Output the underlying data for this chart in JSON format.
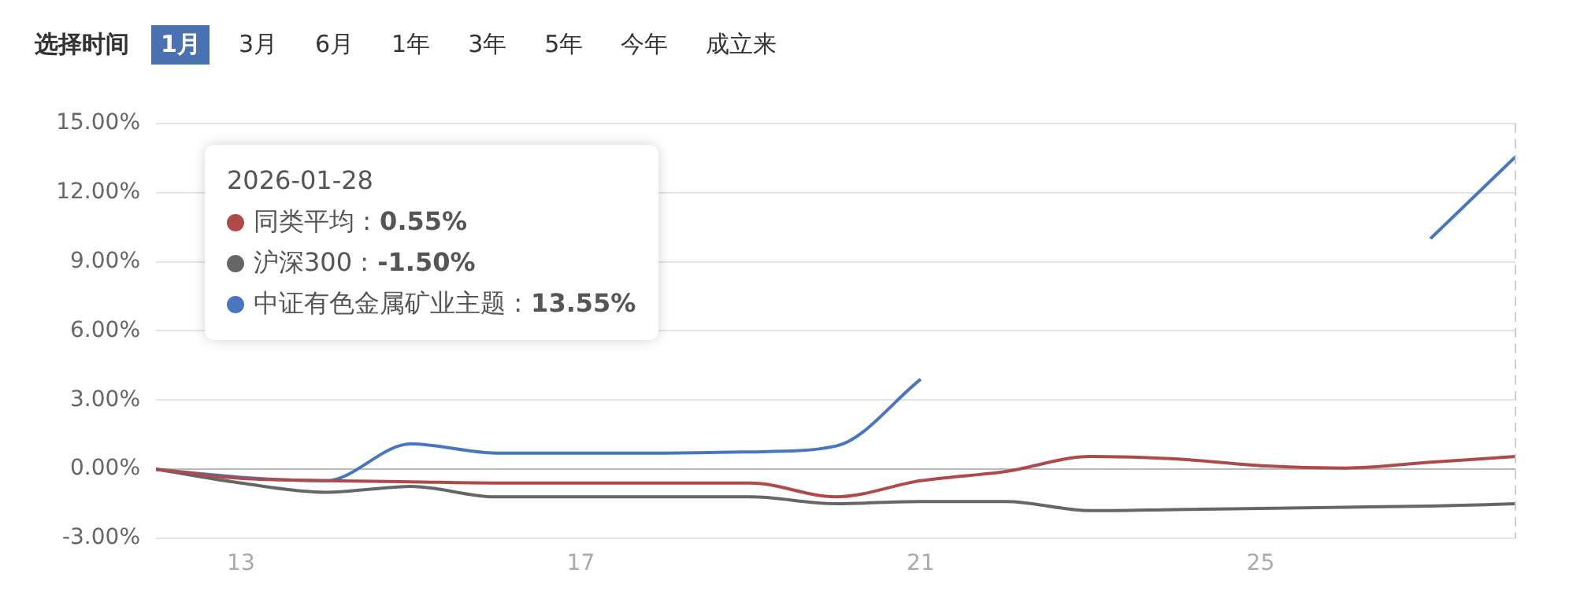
{
  "chart_data": {
    "type": "line",
    "x": [
      12,
      13,
      14,
      15,
      16,
      17,
      18,
      19,
      20,
      21,
      22,
      23,
      24,
      25,
      26,
      27,
      28
    ],
    "series": [
      {
        "name": "同类平均",
        "color": "#b04a4a",
        "values": [
          0,
          -0.4,
          -0.5,
          -0.55,
          -0.6,
          -0.6,
          -0.6,
          -0.6,
          -1.2,
          -0.5,
          -0.1,
          0.55,
          0.45,
          0.15,
          0.05,
          0.3,
          0.55
        ]
      },
      {
        "name": "沪深300",
        "color": "#666666",
        "values": [
          0,
          -0.6,
          -1.0,
          -0.75,
          -1.2,
          -1.2,
          -1.2,
          -1.2,
          -1.5,
          -1.4,
          -1.4,
          -1.8,
          -1.75,
          -1.7,
          -1.65,
          -1.6,
          -1.5
        ]
      },
      {
        "name": "中证有色金属矿业主题",
        "color": "#4a76c0",
        "values": [
          0,
          -0.35,
          -0.5,
          1.1,
          0.7,
          0.7,
          0.7,
          0.75,
          1.0,
          3.9,
          null,
          null,
          null,
          null,
          null,
          10.0,
          13.55
        ]
      }
    ],
    "xlim": [
      12,
      28
    ],
    "xticks": [
      13,
      17,
      21,
      25
    ],
    "ylim": [
      -3,
      15
    ],
    "yticks": [
      {
        "value": -3,
        "label": "-3.00%"
      },
      {
        "value": 0,
        "label": "0.00%"
      },
      {
        "value": 3,
        "label": "3.00%"
      },
      {
        "value": 6,
        "label": "6.00%"
      },
      {
        "value": 9,
        "label": "9.00%"
      },
      {
        "value": 12,
        "label": "12.00%"
      },
      {
        "value": 15,
        "label": "15.00%"
      }
    ],
    "grid": "y",
    "legend": "top left",
    "marker": "none",
    "line_style": "solid",
    "ref_lines": [
      {
        "axis": "x",
        "value": 28,
        "label": null,
        "color": "#cccccc",
        "line_style": "dashed"
      }
    ],
    "annotations": [
      "选择时间",
      "1月",
      "3月",
      "6月",
      "1年",
      "3年",
      "5年",
      "今年",
      "成立来",
      "2026-01-28",
      " : 0.55%",
      " : -1.50%",
      " : 13.55%"
    ]
  }
}
